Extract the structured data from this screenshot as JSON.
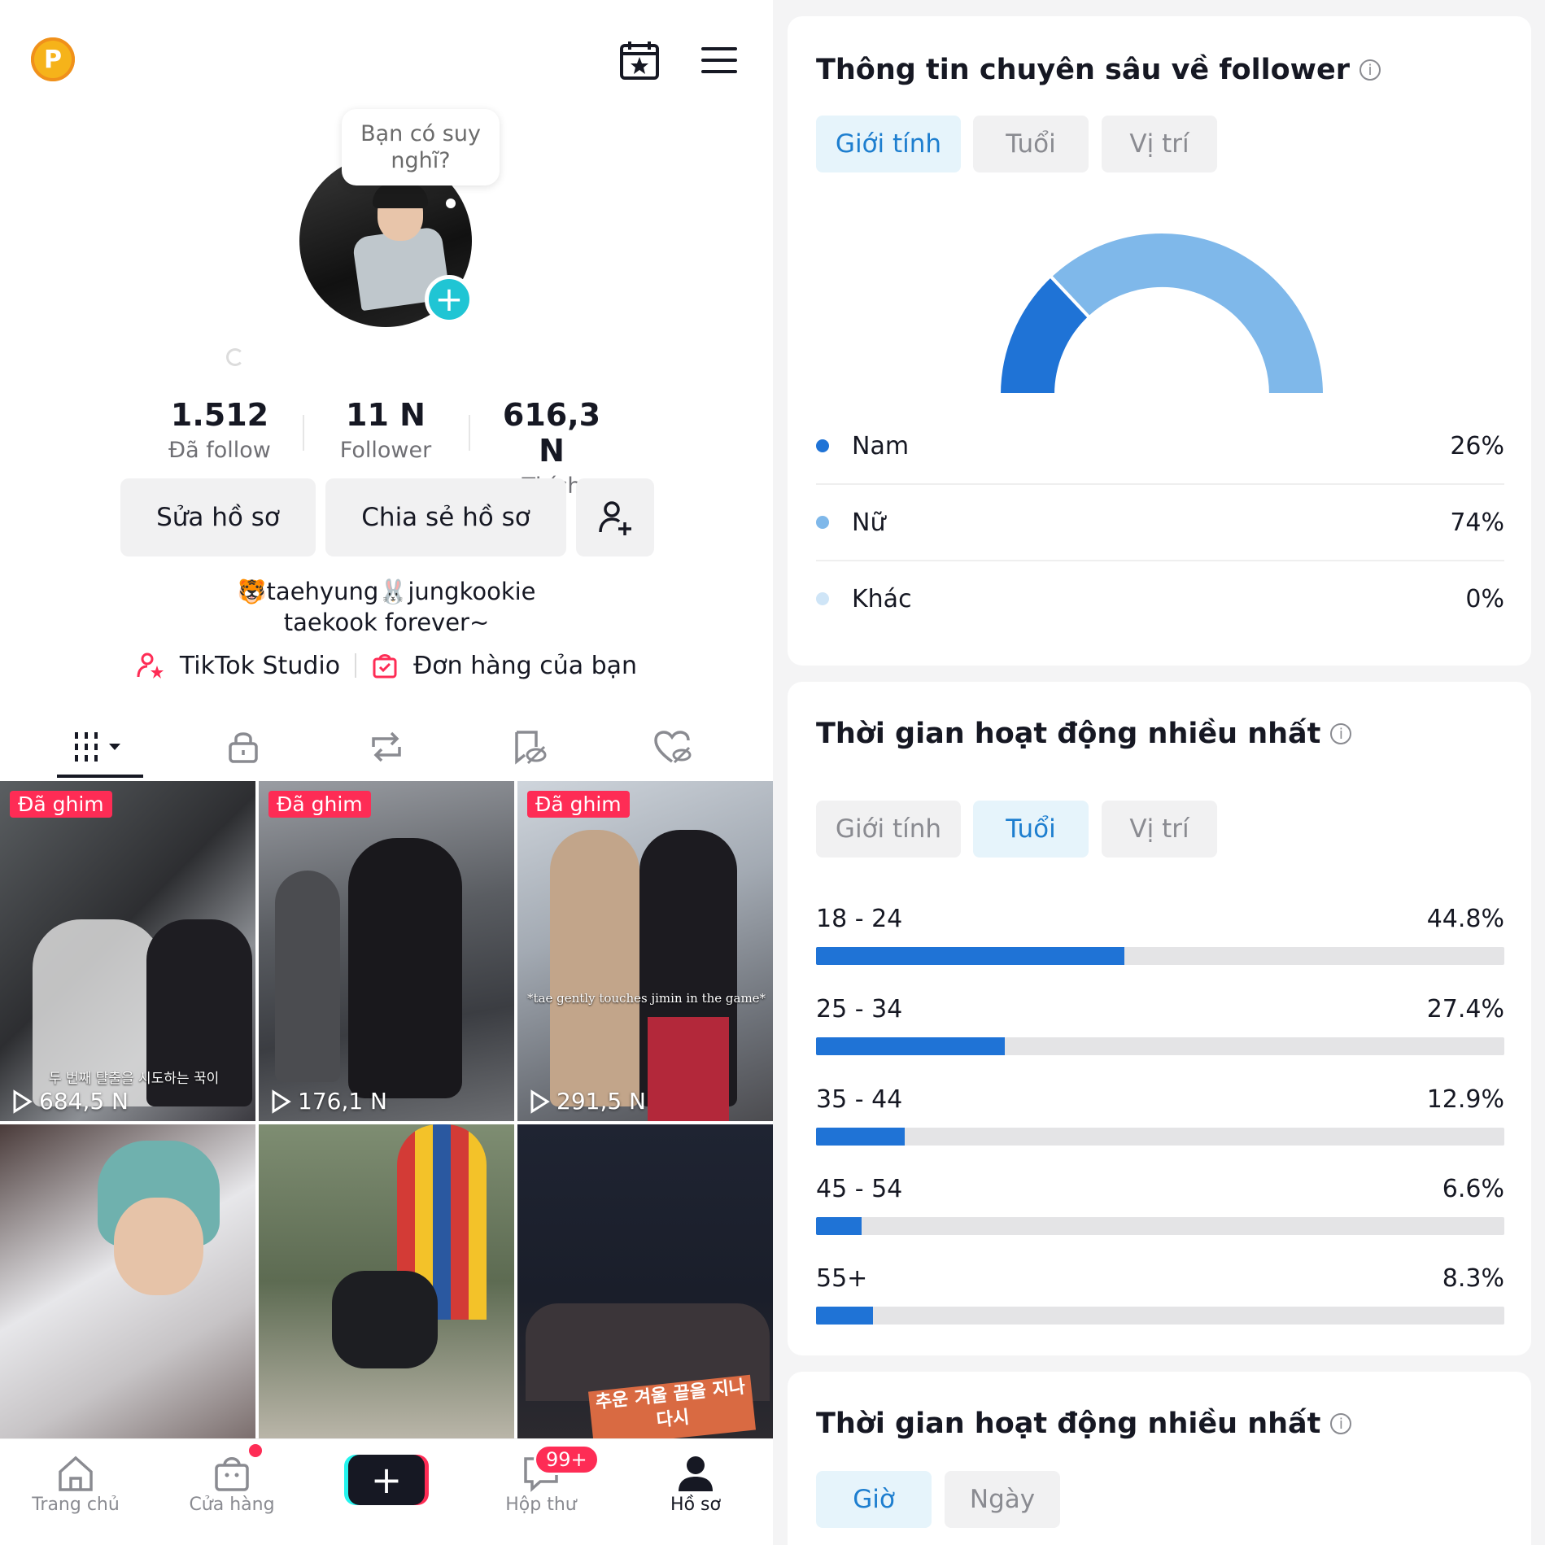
{
  "profile": {
    "thought_bubble": "Bạn có suy nghĩ?",
    "stats": [
      {
        "value": "1.512",
        "label": "Đã follow"
      },
      {
        "value": "11 N",
        "label": "Follower"
      },
      {
        "value": "616,3 N",
        "label": "Thích"
      }
    ],
    "buttons": {
      "edit": "Sửa hồ sơ",
      "share": "Chia sẻ hồ sơ"
    },
    "bio_line1": "🐯taehyung🐰jungkookie",
    "bio_line2": "taekook forever~",
    "links": {
      "studio": "TikTok Studio",
      "orders": "Đơn hàng của bạn"
    }
  },
  "videos": [
    {
      "pinned_label": "Đã ghim",
      "views": "684,5 N",
      "caption": "두 번째 탈출을 시도하는 꾹이"
    },
    {
      "pinned_label": "Đã ghim",
      "views": "176,1 N",
      "caption": ""
    },
    {
      "pinned_label": "Đã ghim",
      "views": "291,5 N",
      "caption": "*tae gently touches jimin in the game*"
    },
    {
      "pinned_label": "",
      "views": "",
      "caption": ""
    },
    {
      "pinned_label": "",
      "views": "",
      "caption": ""
    },
    {
      "pinned_label": "",
      "views": "",
      "caption": "추운 겨울 끝을 지나 다시"
    }
  ],
  "bottom_nav": {
    "home": "Trang chủ",
    "shop": "Cửa hàng",
    "inbox": "Hộp thư",
    "inbox_badge": "99+",
    "profile": "Hồ sơ"
  },
  "follower_insights": {
    "title": "Thông tin chuyên sâu về follower",
    "tabs": [
      "Giới tính",
      "Tuổi",
      "Vị trí"
    ],
    "active_tab": "Giới tính",
    "legend": [
      {
        "label": "Nam",
        "value": "26%",
        "color": "#1f73d6"
      },
      {
        "label": "Nữ",
        "value": "74%",
        "color": "#7fb8ea"
      },
      {
        "label": "Khác",
        "value": "0%",
        "color": "#cfe5f7"
      }
    ]
  },
  "chart_data": {
    "type": "pie",
    "style": "half-donut",
    "categories": [
      "Nam",
      "Nữ",
      "Khác"
    ],
    "values": [
      26,
      74,
      0
    ],
    "colors": [
      "#1f73d6",
      "#7fb8ea",
      "#cfe5f7"
    ]
  },
  "age_card": {
    "title": "Thời gian hoạt động nhiều nhất",
    "tabs": [
      "Giới tính",
      "Tuổi",
      "Vị trí"
    ],
    "active_tab": "Tuổi",
    "ages": [
      {
        "range": "18 - 24",
        "label": "44.8%",
        "value": 44.8
      },
      {
        "range": "25 - 34",
        "label": "27.4%",
        "value": 27.4
      },
      {
        "range": "35 - 44",
        "label": "12.9%",
        "value": 12.9
      },
      {
        "range": "45 - 54",
        "label": "6.6%",
        "value": 6.6
      },
      {
        "range": "55+",
        "label": "8.3%",
        "value": 8.3
      }
    ]
  },
  "time_card": {
    "title": "Thời gian hoạt động nhiều nhất",
    "tabs": [
      "Giờ",
      "Ngày"
    ],
    "active_tab": "Giờ"
  }
}
